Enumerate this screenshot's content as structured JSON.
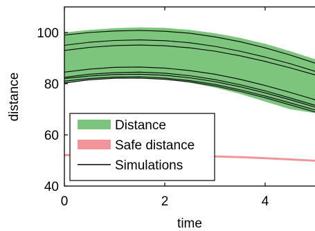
{
  "chart_data": {
    "type": "area",
    "xlabel": "time",
    "ylabel": "distance",
    "xlim": [
      0,
      5
    ],
    "ylim": [
      40,
      110
    ],
    "xticks": [
      0,
      2,
      4
    ],
    "yticks": [
      40,
      60,
      80,
      100
    ],
    "grid": false,
    "legend_position": "bottom-left",
    "legend": [
      {
        "label": "Distance",
        "kind": "band",
        "color": "#7dc47d"
      },
      {
        "label": "Safe distance",
        "kind": "band",
        "color": "#f1959a"
      },
      {
        "label": "Simulations",
        "kind": "line",
        "color": "#000000"
      }
    ],
    "x": [
      0,
      0.5,
      1,
      1.5,
      2,
      2.5,
      3,
      3.5,
      4,
      4.5,
      5
    ],
    "distance_band": {
      "lower": [
        80.0,
        81.5,
        82.2,
        82.3,
        81.7,
        80.4,
        78.5,
        76.0,
        73.0,
        70.0,
        68.5
      ],
      "upper": [
        100.0,
        101.0,
        101.7,
        102.0,
        101.8,
        101.0,
        99.7,
        97.9,
        95.6,
        92.7,
        89.5
      ]
    },
    "safe_distance": {
      "lower": [
        51.7,
        51.8,
        51.8,
        51.8,
        51.7,
        51.5,
        51.2,
        50.9,
        50.5,
        50.0,
        49.5
      ],
      "upper": [
        52.5,
        52.6,
        52.6,
        52.6,
        52.5,
        52.3,
        52.0,
        51.7,
        51.3,
        50.8,
        50.3
      ]
    },
    "simulations": [
      {
        "values": [
          99.0,
          100.0,
          100.6,
          100.8,
          100.5,
          99.7,
          98.3,
          96.4,
          94.0,
          91.2,
          88.0
        ]
      },
      {
        "values": [
          95.0,
          96.2,
          96.9,
          97.1,
          96.8,
          96.0,
          94.6,
          92.7,
          90.4,
          87.8,
          84.8
        ]
      },
      {
        "values": [
          93.0,
          94.2,
          94.9,
          95.1,
          94.8,
          94.0,
          92.7,
          90.9,
          88.7,
          86.2,
          83.4
        ]
      },
      {
        "values": [
          84.5,
          85.7,
          86.4,
          86.5,
          86.1,
          85.1,
          83.7,
          81.7,
          79.3,
          76.6,
          73.7
        ]
      },
      {
        "values": [
          82.5,
          83.7,
          84.3,
          84.5,
          84.1,
          83.1,
          81.6,
          79.6,
          77.2,
          74.4,
          71.5
        ]
      },
      {
        "values": [
          82.0,
          83.0,
          83.6,
          83.7,
          83.3,
          82.3,
          80.8,
          78.8,
          76.4,
          73.7,
          70.8
        ]
      },
      {
        "values": [
          81.0,
          82.0,
          82.6,
          82.7,
          82.2,
          81.2,
          79.7,
          77.6,
          75.2,
          72.5,
          69.7
        ]
      },
      {
        "values": [
          80.3,
          81.5,
          82.1,
          82.2,
          81.7,
          80.7,
          79.1,
          77.0,
          74.5,
          71.7,
          68.9
        ]
      }
    ]
  }
}
